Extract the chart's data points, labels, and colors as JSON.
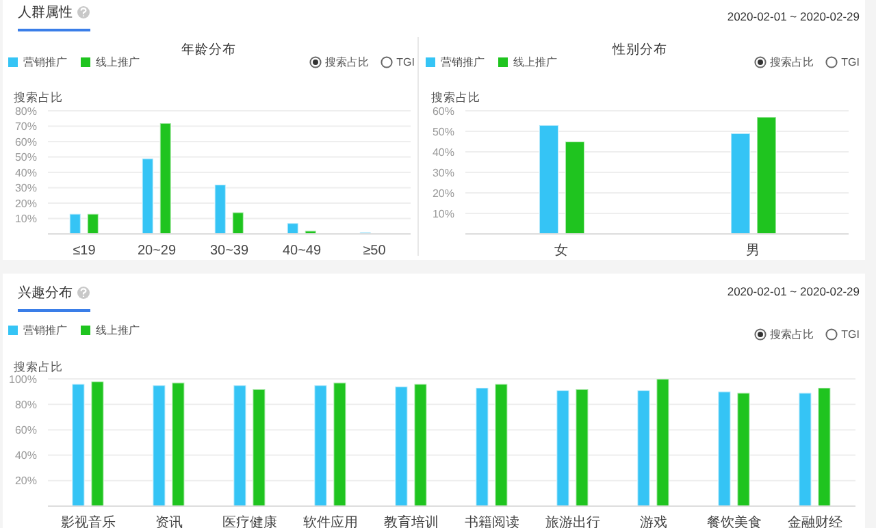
{
  "chart_data": [
    {
      "type": "bar",
      "title": "年龄分布",
      "ylabel": "搜索占比",
      "annotations": [
        "人群属性",
        "搜索占比",
        "TGI"
      ],
      "categories": [
        "≤19",
        "20~29",
        "30~39",
        "40~49",
        "≥50"
      ],
      "series": [
        {
          "name": "营销推广",
          "color": "#35c4f5",
          "values": [
            13,
            49,
            32,
            7,
            1
          ]
        },
        {
          "name": "线上推广",
          "color": "#1fc41f",
          "values": [
            13,
            72,
            14,
            2,
            0
          ]
        }
      ],
      "ylim": [
        0,
        80
      ],
      "yticks": [
        {
          "value": 10,
          "label": "10%"
        },
        {
          "value": 20,
          "label": "20%"
        },
        {
          "value": 30,
          "label": "30%"
        },
        {
          "value": 40,
          "label": "40%"
        },
        {
          "value": 50,
          "label": "50%"
        },
        {
          "value": 60,
          "label": "60%"
        },
        {
          "value": 70,
          "label": "70%"
        },
        {
          "value": 80,
          "label": "80%"
        }
      ],
      "grid": "y",
      "legend": "top left"
    },
    {
      "type": "bar",
      "title": "性别分布",
      "ylabel": "搜索占比",
      "annotations": [
        "2020-02-01 ~ 2020-02-29",
        "搜索占比",
        "TGI"
      ],
      "categories": [
        "女",
        "男"
      ],
      "series": [
        {
          "name": "营销推广",
          "color": "#35c4f5",
          "values": [
            53,
            49
          ]
        },
        {
          "name": "线上推广",
          "color": "#1fc41f",
          "values": [
            45,
            57
          ]
        }
      ],
      "ylim": [
        0,
        60
      ],
      "yticks": [
        {
          "value": 10,
          "label": "10%"
        },
        {
          "value": 20,
          "label": "20%"
        },
        {
          "value": 30,
          "label": "30%"
        },
        {
          "value": 40,
          "label": "40%"
        },
        {
          "value": 50,
          "label": "50%"
        },
        {
          "value": 60,
          "label": "60%"
        }
      ],
      "grid": "y",
      "legend": "top left"
    },
    {
      "type": "bar",
      "ylabel": "搜索占比",
      "annotations": [
        "兴趣分布",
        "2020-02-01 ~ 2020-02-29",
        "搜索占比",
        "TGI"
      ],
      "categories": [
        "影视音乐",
        "资讯",
        "医疗健康",
        "软件应用",
        "教育培训",
        "书籍阅读",
        "旅游出行",
        "游戏",
        "餐饮美食",
        "金融财经"
      ],
      "series": [
        {
          "name": "营销推广",
          "color": "#35c4f5",
          "values": [
            96,
            95,
            95,
            95,
            94,
            93,
            91,
            91,
            90,
            89
          ]
        },
        {
          "name": "线上推广",
          "color": "#1fc41f",
          "values": [
            98,
            97,
            92,
            97,
            96,
            96,
            92,
            100,
            89,
            93
          ]
        }
      ],
      "ylim": [
        0,
        100
      ],
      "yticks": [
        {
          "value": 20,
          "label": "20%"
        },
        {
          "value": 40,
          "label": "40%"
        },
        {
          "value": 60,
          "label": "60%"
        },
        {
          "value": 80,
          "label": "80%"
        },
        {
          "value": 100,
          "label": "100%"
        }
      ],
      "grid": "y",
      "legend": "top left"
    }
  ]
}
